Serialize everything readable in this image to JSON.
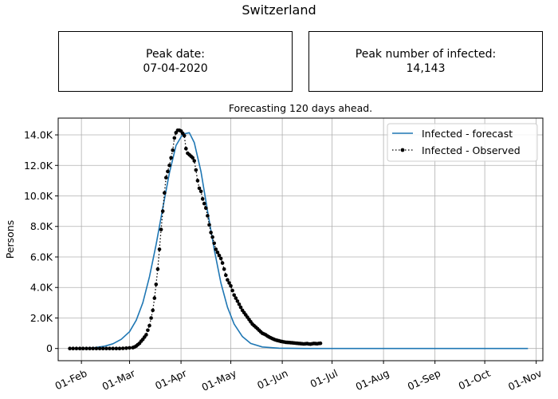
{
  "page_title": "Switzerland",
  "info_boxes": {
    "peak_date": {
      "label": "Peak date:",
      "value": "07-04-2020"
    },
    "peak_count": {
      "label": "Peak number of infected:",
      "value": "14,143"
    }
  },
  "colors": {
    "forecast": "#1f77b4",
    "observed": "#000000",
    "grid": "#b0b0b0"
  },
  "chart_data": {
    "type": "line",
    "title": "Forecasting 120 days ahead.",
    "xlabel": "",
    "ylabel": "Persons",
    "grid": true,
    "legend_position": "top-right",
    "x_axis_type": "date",
    "x_range": [
      "2020-01-18",
      "2020-11-05"
    ],
    "xticks": [
      {
        "date": "2020-02-01",
        "label": "01-Feb"
      },
      {
        "date": "2020-03-01",
        "label": "01-Mar"
      },
      {
        "date": "2020-04-01",
        "label": "01-Apr"
      },
      {
        "date": "2020-05-01",
        "label": "01-May"
      },
      {
        "date": "2020-06-01",
        "label": "01-Jun"
      },
      {
        "date": "2020-07-01",
        "label": "01-Jul"
      },
      {
        "date": "2020-08-01",
        "label": "01-Aug"
      },
      {
        "date": "2020-09-01",
        "label": "01-Sep"
      },
      {
        "date": "2020-10-01",
        "label": "01-Oct"
      },
      {
        "date": "2020-11-01",
        "label": "01-Nov"
      }
    ],
    "ylim": [
      -800,
      15100
    ],
    "yticks": [
      {
        "value": 0,
        "label": "0"
      },
      {
        "value": 2000,
        "label": "2.0K"
      },
      {
        "value": 4000,
        "label": "4.0K"
      },
      {
        "value": 6000,
        "label": "6.0K"
      },
      {
        "value": 8000,
        "label": "8.0K"
      },
      {
        "value": 10000,
        "label": "10.0K"
      },
      {
        "value": 12000,
        "label": "12.0K"
      },
      {
        "value": 14000,
        "label": "14.0K"
      }
    ],
    "series": [
      {
        "name": "Infected - forecast",
        "style": "solid",
        "points": [
          [
            "2020-01-25",
            0
          ],
          [
            "2020-02-01",
            10
          ],
          [
            "2020-02-08",
            40
          ],
          [
            "2020-02-15",
            150
          ],
          [
            "2020-02-20",
            310
          ],
          [
            "2020-02-25",
            600
          ],
          [
            "2020-03-01",
            1100
          ],
          [
            "2020-03-05",
            1850
          ],
          [
            "2020-03-09",
            3000
          ],
          [
            "2020-03-13",
            4700
          ],
          [
            "2020-03-17",
            6800
          ],
          [
            "2020-03-21",
            9200
          ],
          [
            "2020-03-25",
            11500
          ],
          [
            "2020-03-29",
            13300
          ],
          [
            "2020-04-02",
            14050
          ],
          [
            "2020-04-06",
            14143
          ],
          [
            "2020-04-09",
            13500
          ],
          [
            "2020-04-13",
            11600
          ],
          [
            "2020-04-17",
            9000
          ],
          [
            "2020-04-21",
            6500
          ],
          [
            "2020-04-25",
            4300
          ],
          [
            "2020-04-29",
            2700
          ],
          [
            "2020-05-03",
            1600
          ],
          [
            "2020-05-08",
            780
          ],
          [
            "2020-05-13",
            330
          ],
          [
            "2020-05-20",
            100
          ],
          [
            "2020-05-30",
            20
          ],
          [
            "2020-06-15",
            2
          ],
          [
            "2020-07-15",
            0
          ],
          [
            "2020-09-01",
            0
          ],
          [
            "2020-10-27",
            0
          ]
        ]
      },
      {
        "name": "Infected - Observed",
        "style": "dotted-markers",
        "points": [
          [
            "2020-01-25",
            0
          ],
          [
            "2020-01-27",
            0
          ],
          [
            "2020-01-29",
            0
          ],
          [
            "2020-01-31",
            0
          ],
          [
            "2020-02-02",
            0
          ],
          [
            "2020-02-04",
            0
          ],
          [
            "2020-02-06",
            0
          ],
          [
            "2020-02-08",
            0
          ],
          [
            "2020-02-10",
            0
          ],
          [
            "2020-02-12",
            0
          ],
          [
            "2020-02-14",
            0
          ],
          [
            "2020-02-16",
            0
          ],
          [
            "2020-02-18",
            0
          ],
          [
            "2020-02-20",
            0
          ],
          [
            "2020-02-22",
            0
          ],
          [
            "2020-02-24",
            0
          ],
          [
            "2020-02-26",
            10
          ],
          [
            "2020-02-28",
            20
          ],
          [
            "2020-03-01",
            40
          ],
          [
            "2020-03-03",
            60
          ],
          [
            "2020-03-04",
            100
          ],
          [
            "2020-03-05",
            160
          ],
          [
            "2020-03-06",
            250
          ],
          [
            "2020-03-07",
            340
          ],
          [
            "2020-03-08",
            480
          ],
          [
            "2020-03-09",
            600
          ],
          [
            "2020-03-10",
            750
          ],
          [
            "2020-03-11",
            900
          ],
          [
            "2020-03-12",
            1200
          ],
          [
            "2020-03-13",
            1500
          ],
          [
            "2020-03-14",
            2000
          ],
          [
            "2020-03-15",
            2500
          ],
          [
            "2020-03-16",
            3300
          ],
          [
            "2020-03-17",
            4200
          ],
          [
            "2020-03-18",
            5200
          ],
          [
            "2020-03-19",
            6500
          ],
          [
            "2020-03-20",
            7800
          ],
          [
            "2020-03-21",
            9000
          ],
          [
            "2020-03-22",
            10200
          ],
          [
            "2020-03-23",
            11200
          ],
          [
            "2020-03-24",
            11600
          ],
          [
            "2020-03-25",
            12000
          ],
          [
            "2020-03-26",
            12500
          ],
          [
            "2020-03-27",
            13000
          ],
          [
            "2020-03-28",
            13800
          ],
          [
            "2020-03-29",
            14143
          ],
          [
            "2020-03-30",
            14300
          ],
          [
            "2020-03-31",
            14300
          ],
          [
            "2020-04-01",
            14250
          ],
          [
            "2020-04-02",
            14100
          ],
          [
            "2020-04-03",
            13950
          ],
          [
            "2020-04-04",
            13100
          ],
          [
            "2020-04-05",
            12800
          ],
          [
            "2020-04-06",
            12700
          ],
          [
            "2020-04-07",
            12600
          ],
          [
            "2020-04-08",
            12500
          ],
          [
            "2020-04-09",
            12300
          ],
          [
            "2020-04-10",
            11700
          ],
          [
            "2020-04-11",
            11000
          ],
          [
            "2020-04-12",
            10500
          ],
          [
            "2020-04-13",
            10300
          ],
          [
            "2020-04-14",
            9800
          ],
          [
            "2020-04-15",
            9500
          ],
          [
            "2020-04-16",
            9200
          ],
          [
            "2020-04-17",
            8700
          ],
          [
            "2020-04-18",
            8100
          ],
          [
            "2020-04-19",
            7600
          ],
          [
            "2020-04-20",
            7300
          ],
          [
            "2020-04-21",
            6900
          ],
          [
            "2020-04-22",
            6500
          ],
          [
            "2020-04-23",
            6300
          ],
          [
            "2020-04-24",
            6100
          ],
          [
            "2020-04-25",
            5900
          ],
          [
            "2020-04-26",
            5600
          ],
          [
            "2020-04-27",
            5200
          ],
          [
            "2020-04-28",
            4800
          ],
          [
            "2020-04-29",
            4500
          ],
          [
            "2020-04-30",
            4300
          ],
          [
            "2020-05-01",
            4100
          ],
          [
            "2020-05-02",
            3800
          ],
          [
            "2020-05-03",
            3500
          ],
          [
            "2020-05-04",
            3300
          ],
          [
            "2020-05-05",
            3100
          ],
          [
            "2020-05-06",
            2900
          ],
          [
            "2020-05-07",
            2700
          ],
          [
            "2020-05-08",
            2500
          ],
          [
            "2020-05-09",
            2350
          ],
          [
            "2020-05-10",
            2200
          ],
          [
            "2020-05-11",
            2050
          ],
          [
            "2020-05-12",
            1900
          ],
          [
            "2020-05-13",
            1750
          ],
          [
            "2020-05-14",
            1600
          ],
          [
            "2020-05-15",
            1500
          ],
          [
            "2020-05-16",
            1400
          ],
          [
            "2020-05-17",
            1300
          ],
          [
            "2020-05-18",
            1200
          ],
          [
            "2020-05-19",
            1100
          ],
          [
            "2020-05-20",
            1000
          ],
          [
            "2020-05-21",
            950
          ],
          [
            "2020-05-22",
            900
          ],
          [
            "2020-05-23",
            820
          ],
          [
            "2020-05-24",
            760
          ],
          [
            "2020-05-25",
            700
          ],
          [
            "2020-05-26",
            650
          ],
          [
            "2020-05-27",
            600
          ],
          [
            "2020-05-28",
            560
          ],
          [
            "2020-05-29",
            530
          ],
          [
            "2020-05-30",
            500
          ],
          [
            "2020-05-31",
            470
          ],
          [
            "2020-06-01",
            450
          ],
          [
            "2020-06-02",
            430
          ],
          [
            "2020-06-03",
            410
          ],
          [
            "2020-06-04",
            400
          ],
          [
            "2020-06-05",
            390
          ],
          [
            "2020-06-06",
            380
          ],
          [
            "2020-06-07",
            370
          ],
          [
            "2020-06-08",
            360
          ],
          [
            "2020-06-09",
            350
          ],
          [
            "2020-06-10",
            340
          ],
          [
            "2020-06-11",
            330
          ],
          [
            "2020-06-12",
            320
          ],
          [
            "2020-06-13",
            310
          ],
          [
            "2020-06-14",
            300
          ],
          [
            "2020-06-15",
            310
          ],
          [
            "2020-06-16",
            320
          ],
          [
            "2020-06-17",
            300
          ],
          [
            "2020-06-18",
            290
          ],
          [
            "2020-06-19",
            310
          ],
          [
            "2020-06-20",
            330
          ],
          [
            "2020-06-21",
            320
          ],
          [
            "2020-06-22",
            310
          ],
          [
            "2020-06-23",
            330
          ],
          [
            "2020-06-24",
            340
          ]
        ]
      }
    ]
  }
}
